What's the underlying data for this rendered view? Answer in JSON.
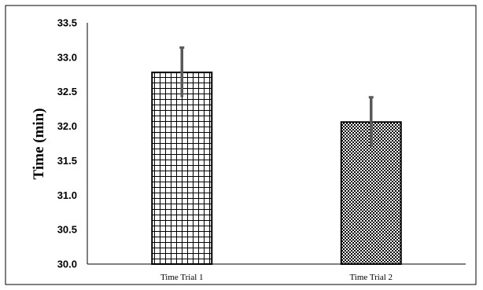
{
  "chart_data": {
    "type": "bar",
    "title": "",
    "xlabel": "",
    "ylabel": "Time (min)",
    "categories": [
      "Time Trial 1",
      "Time Trial 2"
    ],
    "values": [
      32.78,
      32.06
    ],
    "errors": [
      0.36,
      0.36
    ],
    "ylim": [
      30.0,
      33.5
    ],
    "yticks": [
      "30.0",
      "30.5",
      "31.0",
      "31.5",
      "32.0",
      "32.5",
      "33.0",
      "33.5"
    ],
    "grid": false,
    "legend": "none",
    "bar_fills": [
      "grid-pattern",
      "checker-pattern"
    ],
    "colors": {
      "bar_edge": "#000000",
      "error_bar": "#595959",
      "axis": "#000000"
    }
  }
}
